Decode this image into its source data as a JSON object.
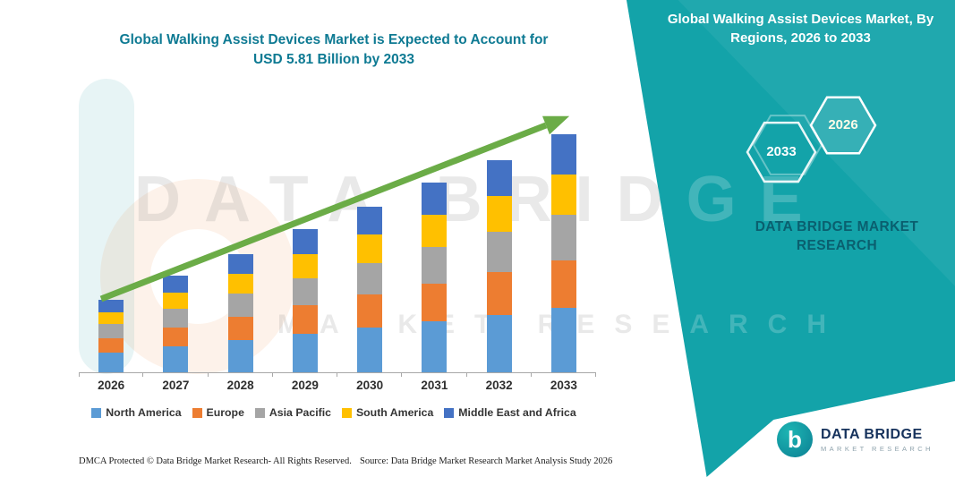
{
  "page": {
    "title_line1": "Global Walking Assist Devices Market is Expected to Account for",
    "title_line2": "USD 5.81 Billion by 2033"
  },
  "side_panel": {
    "title": "Global Walking Assist Devices Market, By Regions, 2026 to 2033",
    "accent_color": "#13a3a9",
    "hexagons": [
      {
        "label": "2033"
      },
      {
        "label": "2026"
      }
    ],
    "brand_line1": "DATA BRIDGE MARKET",
    "brand_line2": "RESEARCH"
  },
  "watermark": {
    "line1": "DATA BRIDGE",
    "line2": "MARKET RESEARCH"
  },
  "footer": {
    "dmca": "DMCA Protected © Data Bridge Market Research-  All Rights Reserved.",
    "source": "Source: Data Bridge Market Research  Market Analysis Study 2026"
  },
  "logo": {
    "monogram": "b",
    "name": "DATA BRIDGE",
    "subtitle": "MARKET RESEARCH"
  },
  "chart_data": {
    "type": "bar",
    "stacked": true,
    "unit": "USD Billion",
    "title": "Global Walking Assist Devices Market is Expected to Account for USD 5.81 Billion by 2033",
    "categories": [
      "2026",
      "2027",
      "2028",
      "2029",
      "2030",
      "2031",
      "2032",
      "2033"
    ],
    "series": [
      {
        "name": "North America",
        "color": "#5B9BD5",
        "values": [
          0.48,
          0.63,
          0.78,
          0.94,
          1.09,
          1.25,
          1.4,
          1.57
        ]
      },
      {
        "name": "Europe",
        "color": "#ED7D31",
        "values": [
          0.35,
          0.47,
          0.58,
          0.7,
          0.81,
          0.92,
          1.04,
          1.16
        ]
      },
      {
        "name": "Asia Pacific",
        "color": "#A5A5A5",
        "values": [
          0.34,
          0.45,
          0.55,
          0.66,
          0.77,
          0.88,
          0.98,
          1.1
        ]
      },
      {
        "name": "South America",
        "color": "#FFC000",
        "values": [
          0.3,
          0.4,
          0.49,
          0.59,
          0.69,
          0.79,
          0.88,
          0.99
        ]
      },
      {
        "name": "Middle East and Africa",
        "color": "#4472C4",
        "values": [
          0.3,
          0.4,
          0.49,
          0.59,
          0.68,
          0.78,
          0.88,
          0.99
        ]
      }
    ],
    "totals": [
      1.77,
      2.35,
      2.89,
      3.48,
      4.04,
      4.62,
      5.18,
      5.81
    ],
    "ylim": [
      0,
      6.5
    ],
    "xlabel": "",
    "ylabel": "",
    "gridlines": false,
    "legend_position": "bottom",
    "trend_arrow": {
      "show": true,
      "color": "#6BAC47"
    }
  }
}
